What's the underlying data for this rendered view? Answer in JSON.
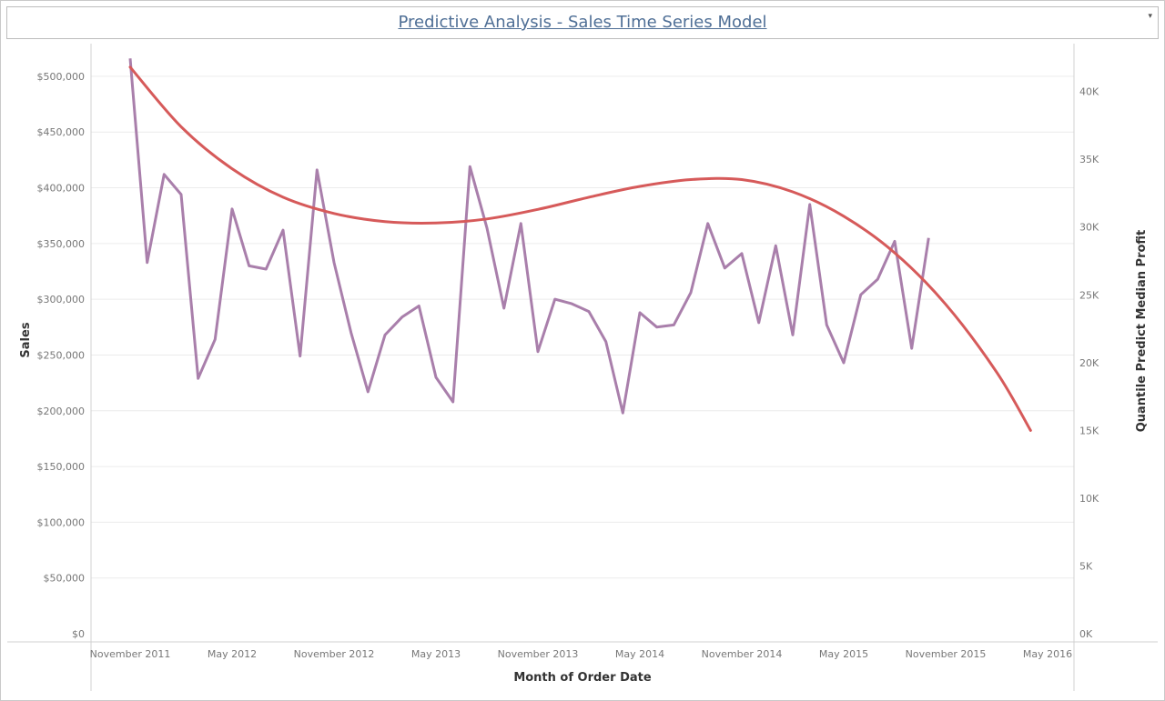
{
  "header": {
    "title": "Predictive Analysis - Sales Time Series Model",
    "dropdown_icon": "▾"
  },
  "colors": {
    "sales_line": "#a97fab",
    "profit_line": "#d65a5a",
    "gridline": "#ececec",
    "axis_line": "#d0d0d0",
    "title": "#4f6f96"
  },
  "chart_data": {
    "type": "line",
    "title": "Predictive Analysis - Sales Time Series Model",
    "xlabel": "Month of Order Date",
    "ylabel": "Sales",
    "y2label": "Quantile Predict Median Profit",
    "x_range": [
      "2011-10",
      "2016-05"
    ],
    "ylim": [
      0,
      535000
    ],
    "y2lim": [
      0,
      44000
    ],
    "x_tick_labels": [
      {
        "date": "2011-11",
        "label": "November 2011"
      },
      {
        "date": "2012-05",
        "label": "May 2012"
      },
      {
        "date": "2012-11",
        "label": "November 2012"
      },
      {
        "date": "2013-05",
        "label": "May 2013"
      },
      {
        "date": "2013-11",
        "label": "November 2013"
      },
      {
        "date": "2014-05",
        "label": "May 2014"
      },
      {
        "date": "2014-11",
        "label": "November 2014"
      },
      {
        "date": "2015-05",
        "label": "May 2015"
      },
      {
        "date": "2015-11",
        "label": "November 2015"
      },
      {
        "date": "2016-05",
        "label": "May 2016"
      }
    ],
    "y_ticks": [
      {
        "value": 0,
        "label": "$0"
      },
      {
        "value": 50000,
        "label": "$50,000"
      },
      {
        "value": 100000,
        "label": "$100,000"
      },
      {
        "value": 150000,
        "label": "$150,000"
      },
      {
        "value": 200000,
        "label": "$200,000"
      },
      {
        "value": 250000,
        "label": "$250,000"
      },
      {
        "value": 300000,
        "label": "$300,000"
      },
      {
        "value": 350000,
        "label": "$350,000"
      },
      {
        "value": 400000,
        "label": "$400,000"
      },
      {
        "value": 450000,
        "label": "$450,000"
      },
      {
        "value": 500000,
        "label": "$500,000"
      }
    ],
    "y2_ticks": [
      {
        "value": 0,
        "label": "0K"
      },
      {
        "value": 5000,
        "label": "5K"
      },
      {
        "value": 10000,
        "label": "10K"
      },
      {
        "value": 15000,
        "label": "15K"
      },
      {
        "value": 20000,
        "label": "20K"
      },
      {
        "value": 25000,
        "label": "25K"
      },
      {
        "value": 30000,
        "label": "30K"
      },
      {
        "value": 35000,
        "label": "35K"
      },
      {
        "value": 40000,
        "label": "40K"
      }
    ],
    "series": [
      {
        "axis": "left",
        "x": [
          "2011-11",
          "2011-12",
          "2012-01",
          "2012-02",
          "2012-03",
          "2012-04",
          "2012-05",
          "2012-06",
          "2012-07",
          "2012-08",
          "2012-09",
          "2012-10",
          "2012-11",
          "2012-12",
          "2013-01",
          "2013-02",
          "2013-03",
          "2013-04",
          "2013-05",
          "2013-06",
          "2013-07",
          "2013-08",
          "2013-09",
          "2013-10",
          "2013-11",
          "2013-12",
          "2014-01",
          "2014-02",
          "2014-03",
          "2014-04",
          "2014-05",
          "2014-06",
          "2014-07",
          "2014-08",
          "2014-09",
          "2014-10",
          "2014-11",
          "2014-12",
          "2015-01",
          "2015-02",
          "2015-03",
          "2015-04",
          "2015-05",
          "2015-06",
          "2015-07",
          "2015-08",
          "2015-09",
          "2015-10",
          "2015-11",
          "2015-12",
          "2016-01"
        ],
        "values": [
          516000,
          333000,
          412000,
          394000,
          229000,
          264000,
          381000,
          330000,
          327000,
          362000,
          249000,
          416000,
          333000,
          270000,
          217000,
          268000,
          284000,
          294000,
          230000,
          208000,
          419000,
          364000,
          292000,
          368000,
          253000,
          300000,
          296000,
          289000,
          262000,
          198000,
          288000,
          275000,
          277000,
          306000,
          368000,
          328000,
          341000,
          279000,
          348000,
          268000,
          385000,
          277000,
          243000,
          304000,
          318000,
          352000,
          256000,
          355000,
          null,
          null,
          null
        ]
      },
      {
        "axis": "right",
        "x": [
          "2011-11",
          "2012-02",
          "2012-05",
          "2012-08",
          "2012-11",
          "2013-02",
          "2013-05",
          "2013-08",
          "2013-11",
          "2014-02",
          "2014-05",
          "2014-08",
          "2014-11",
          "2015-02",
          "2015-05",
          "2015-08",
          "2015-11",
          "2016-02",
          "2016-04"
        ],
        "values": [
          41800,
          37400,
          34300,
          32200,
          31000,
          30400,
          30300,
          30600,
          31300,
          32200,
          33000,
          33500,
          33500,
          32600,
          30800,
          28100,
          24300,
          19300,
          15000
        ]
      }
    ]
  }
}
